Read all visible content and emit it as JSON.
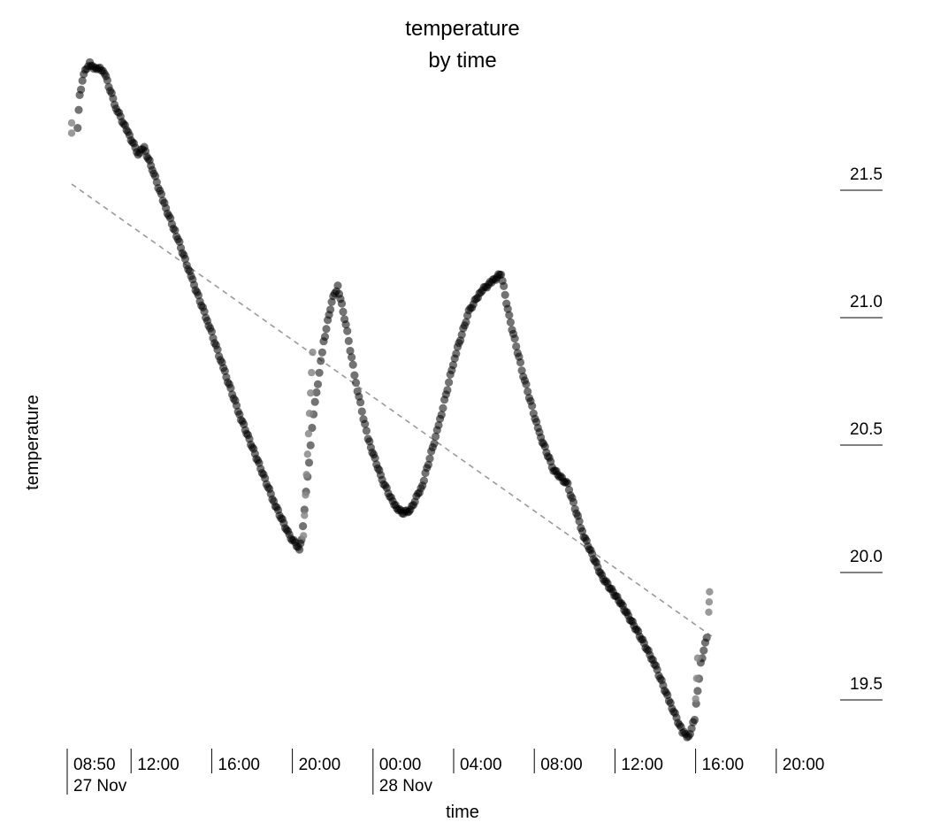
{
  "chart_data": {
    "type": "scatter",
    "title": "temperature",
    "subtitle": "by time",
    "xlabel": "time",
    "ylabel": "temperature",
    "x_unit": "hours since 08:50 27 Nov",
    "y_ticks": [
      "21.5",
      "21.0",
      "20.5",
      "20.0",
      "19.5"
    ],
    "y_tick_values": [
      21.5,
      21.0,
      20.5,
      20.0,
      19.5
    ],
    "ylim": [
      19.2,
      22.0
    ],
    "xlim": [
      0,
      36.9
    ],
    "x_ticks": [
      {
        "label": "08:50",
        "date": "27 Nov",
        "hours": 0
      },
      {
        "label": "12:00",
        "date": "",
        "hours": 3.167
      },
      {
        "label": "16:00",
        "date": "",
        "hours": 7.167
      },
      {
        "label": "20:00",
        "date": "",
        "hours": 11.167
      },
      {
        "label": "00:00",
        "date": "28 Nov",
        "hours": 15.167
      },
      {
        "label": "04:00",
        "date": "",
        "hours": 19.167
      },
      {
        "label": "08:00",
        "date": "",
        "hours": 23.167
      },
      {
        "label": "12:00",
        "date": "",
        "hours": 27.167
      },
      {
        "label": "16:00",
        "date": "",
        "hours": 31.167
      },
      {
        "label": "20:00",
        "date": "",
        "hours": 35.167
      }
    ],
    "series": [
      {
        "name": "temperature",
        "key_points": [
          [
            0.3,
            21.72
          ],
          [
            0.4,
            21.85
          ],
          [
            0.6,
            21.93
          ],
          [
            0.9,
            21.98
          ],
          [
            1.1,
            21.95
          ],
          [
            1.4,
            21.96
          ],
          [
            1.7,
            21.92
          ],
          [
            2.2,
            21.8
          ],
          [
            2.8,
            21.7
          ],
          [
            3.3,
            21.62
          ],
          [
            3.6,
            21.64
          ],
          [
            4.0,
            21.56
          ],
          [
            4.6,
            21.42
          ],
          [
            5.2,
            21.3
          ],
          [
            6.0,
            21.12
          ],
          [
            6.8,
            20.95
          ],
          [
            7.6,
            20.76
          ],
          [
            8.4,
            20.58
          ],
          [
            9.3,
            20.4
          ],
          [
            10.1,
            20.24
          ],
          [
            10.8,
            20.12
          ],
          [
            11.3,
            20.07
          ],
          [
            11.4,
            20.1
          ],
          [
            12.0,
            20.6
          ],
          [
            12.5,
            20.88
          ],
          [
            12.9,
            21.04
          ],
          [
            13.2,
            21.1
          ],
          [
            13.6,
            20.95
          ],
          [
            14.1,
            20.72
          ],
          [
            14.7,
            20.5
          ],
          [
            15.4,
            20.34
          ],
          [
            16.0,
            20.24
          ],
          [
            16.4,
            20.21
          ],
          [
            16.8,
            20.22
          ],
          [
            17.4,
            20.32
          ],
          [
            18.2,
            20.55
          ],
          [
            19.0,
            20.82
          ],
          [
            19.7,
            21.0
          ],
          [
            20.3,
            21.08
          ],
          [
            20.9,
            21.12
          ],
          [
            21.3,
            21.15
          ],
          [
            21.7,
            20.98
          ],
          [
            22.4,
            20.75
          ],
          [
            23.2,
            20.52
          ],
          [
            23.9,
            20.38
          ],
          [
            24.6,
            20.32
          ],
          [
            25.4,
            20.12
          ],
          [
            26.3,
            19.96
          ],
          [
            27.2,
            19.86
          ],
          [
            28.1,
            19.74
          ],
          [
            28.9,
            19.62
          ],
          [
            29.7,
            19.46
          ],
          [
            30.3,
            19.35
          ],
          [
            30.6,
            19.33
          ],
          [
            30.9,
            19.4
          ],
          [
            31.2,
            19.62
          ],
          [
            31.5,
            19.72
          ]
        ],
        "sparse_points": [
          [
            0.0,
            21.7
          ],
          [
            0.0,
            21.74
          ],
          [
            11.5,
            20.12
          ],
          [
            11.55,
            20.2
          ],
          [
            11.6,
            20.28
          ],
          [
            11.65,
            20.36
          ],
          [
            11.7,
            20.44
          ],
          [
            11.75,
            20.52
          ],
          [
            11.8,
            20.6
          ],
          [
            11.85,
            20.68
          ],
          [
            11.9,
            20.76
          ],
          [
            11.95,
            20.84
          ],
          [
            30.95,
            19.48
          ],
          [
            31.0,
            19.56
          ],
          [
            31.05,
            19.64
          ],
          [
            31.6,
            19.82
          ],
          [
            31.62,
            19.86
          ],
          [
            31.64,
            19.9
          ]
        ]
      }
    ],
    "trendline": {
      "style": "dashed",
      "from": [
        0,
        21.5
      ],
      "to": [
        31.5,
        19.72
      ]
    }
  }
}
